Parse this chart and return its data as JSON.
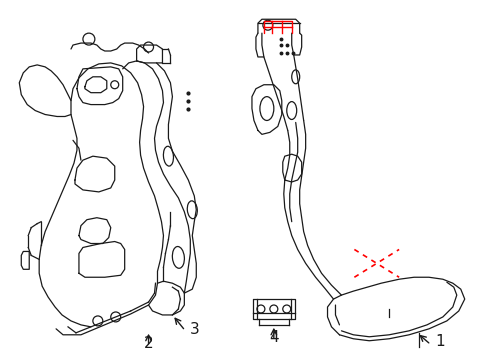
{
  "background_color": "#ffffff",
  "line_color": "#1a1a1a",
  "red_color": "#ff0000",
  "label_1": "1",
  "label_2": "2",
  "label_3": "3",
  "label_4": "4",
  "label_fontsize": 11,
  "figsize": [
    4.89,
    3.6
  ],
  "dpi": 100
}
